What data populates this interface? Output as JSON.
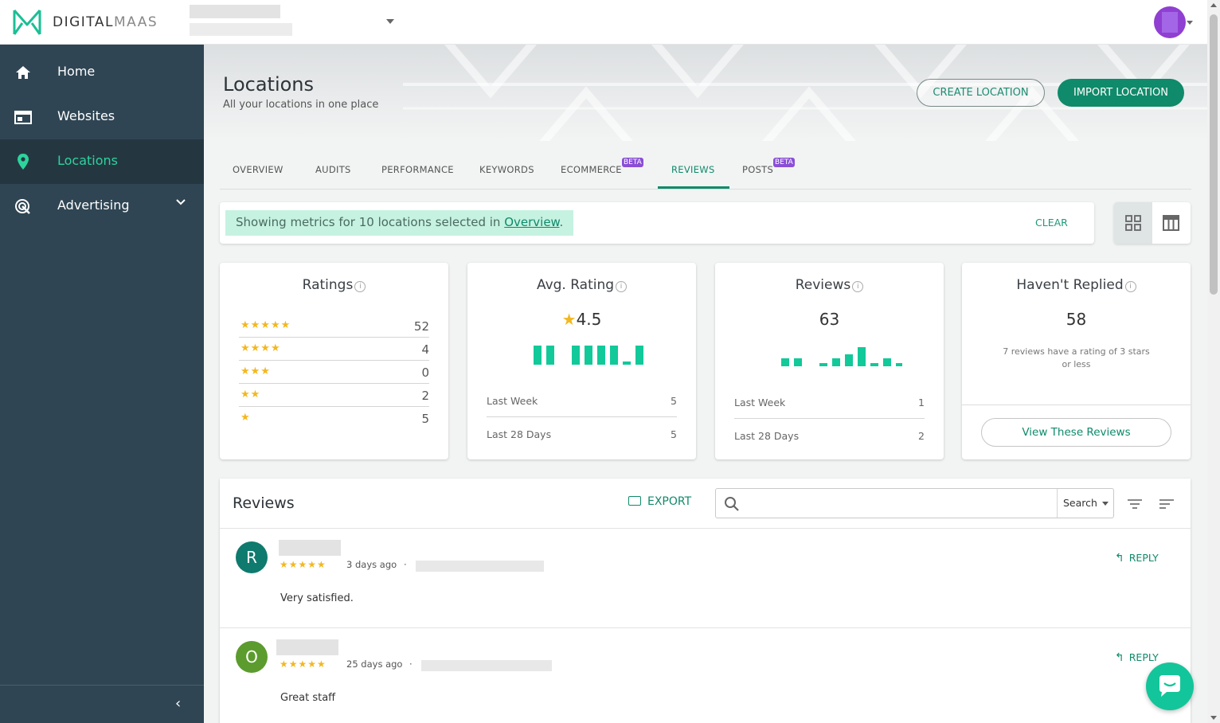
{
  "brand": {
    "name_a": "DIGITAL",
    "name_b": "MAAS"
  },
  "sidebar": {
    "items": [
      {
        "label": "Home",
        "icon": "home-icon"
      },
      {
        "label": "Websites",
        "icon": "website-icon"
      },
      {
        "label": "Locations",
        "icon": "location-pin-icon"
      },
      {
        "label": "Advertising",
        "icon": "advertising-icon"
      }
    ],
    "collapse_glyph": "‹"
  },
  "page": {
    "title": "Locations",
    "subtitle": "All your locations in one place",
    "create_label": "CREATE LOCATION",
    "import_label": "IMPORT LOCATION"
  },
  "tabs": [
    "OVERVIEW",
    "AUDITS",
    "PERFORMANCE",
    "KEYWORDS",
    "ECOMMERCE",
    "REVIEWS",
    "POSTS"
  ],
  "tab_beta": "BETA",
  "filter": {
    "message_prefix": "Showing metrics for 10 locations selected in ",
    "message_link": "Overview",
    "message_suffix": ".",
    "clear_label": "CLEAR"
  },
  "cards": {
    "ratings": {
      "title": "Ratings",
      "rows": [
        {
          "stars": "★★★★★",
          "count": "52"
        },
        {
          "stars": "★★★★",
          "count": "4"
        },
        {
          "stars": "★★★",
          "count": "0"
        },
        {
          "stars": "★★",
          "count": "2"
        },
        {
          "stars": "★",
          "count": "5"
        }
      ]
    },
    "avg_rating": {
      "title": "Avg. Rating",
      "star": "★",
      "value": "4.5",
      "last_week_label": "Last Week",
      "last_week": "5",
      "last_28_label": "Last 28 Days",
      "last_28": "5"
    },
    "reviews": {
      "title": "Reviews",
      "value": "63",
      "last_week_label": "Last Week",
      "last_week": "1",
      "last_28_label": "Last 28 Days",
      "last_28": "2"
    },
    "not_replied": {
      "title": "Haven't Replied",
      "value": "58",
      "note": "7 reviews have a rating of 3 stars or less",
      "button": "View These Reviews"
    },
    "info_glyph": "i"
  },
  "reviews_panel": {
    "title": "Reviews",
    "export_label": "EXPORT",
    "search_placeholder": "",
    "search_mode": "Search",
    "items": [
      {
        "initial": "R",
        "avatar_color": "#0f7a6e",
        "stars": "★★★★★",
        "when": "3 days ago",
        "sep": "·",
        "text": "Very satisfied.",
        "reply": "REPLY"
      },
      {
        "initial": "O",
        "avatar_color": "#5c9b2e",
        "stars": "★★★★★",
        "when": "25 days ago",
        "sep": "·",
        "text": "Great staff",
        "reply": "REPLY"
      }
    ]
  },
  "colors": {
    "accent": "#0f8a6a",
    "sidebar": "#2f4553",
    "star": "#f3b720",
    "spark": "#12c99a"
  }
}
